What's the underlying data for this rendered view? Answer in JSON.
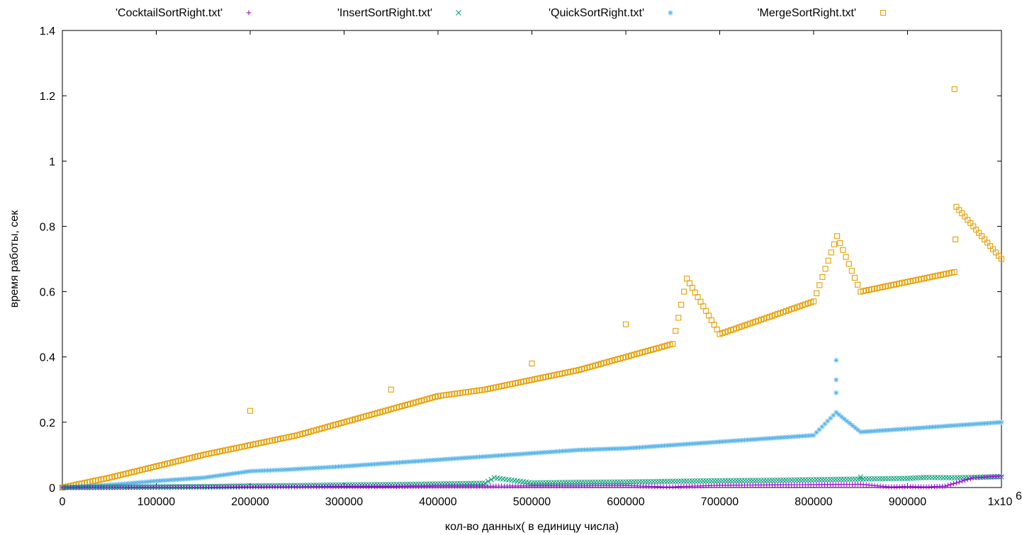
{
  "chart_data": {
    "type": "scatter",
    "title": "",
    "xlabel": "кол-во данных( в единицу числа)",
    "ylabel": "время работы, сек",
    "xlim": [
      0,
      1000000
    ],
    "ylim": [
      0,
      1.4
    ],
    "x_ticks": [
      0,
      100000,
      200000,
      300000,
      400000,
      500000,
      600000,
      700000,
      800000,
      900000,
      1000000
    ],
    "x_tick_labels": [
      "0",
      "100000",
      "200000",
      "300000",
      "400000",
      "500000",
      "600000",
      "700000",
      "800000",
      "900000",
      "1x10"
    ],
    "x_multiplier_exponent": "6",
    "y_ticks": [
      0,
      0.2,
      0.4,
      0.6,
      0.8,
      1,
      1.2,
      1.4
    ],
    "y_tick_labels": [
      "0",
      "0.2",
      "0.4",
      "0.6",
      "0.8",
      "1",
      "1.2",
      "1.4"
    ],
    "grid": false,
    "legend_position": "top",
    "series": [
      {
        "name": "'CocktailSortRight.txt'",
        "marker": "+",
        "color": "#9400d3",
        "points": [
          [
            0,
            0.0
          ],
          [
            50000,
            0.0
          ],
          [
            100000,
            0.001
          ],
          [
            150000,
            0.001
          ],
          [
            200000,
            0.002
          ],
          [
            250000,
            0.002
          ],
          [
            300000,
            0.003
          ],
          [
            350000,
            0.003
          ],
          [
            400000,
            0.004
          ],
          [
            450000,
            0.004
          ],
          [
            500000,
            0.005
          ],
          [
            550000,
            0.005
          ],
          [
            600000,
            0.006
          ],
          [
            640000,
            0.002
          ],
          [
            650000,
            0.002
          ],
          [
            700000,
            0.007
          ],
          [
            750000,
            0.008
          ],
          [
            800000,
            0.009
          ],
          [
            850000,
            0.01
          ],
          [
            880000,
            0.002
          ],
          [
            900000,
            0.003
          ],
          [
            920000,
            0.002
          ],
          [
            940000,
            0.004
          ],
          [
            970000,
            0.03
          ],
          [
            1000000,
            0.035
          ]
        ]
      },
      {
        "name": "'InsertSortRight.txt'",
        "marker": "x",
        "color": "#009e73",
        "points": [
          [
            0,
            0.0
          ],
          [
            50000,
            0.001
          ],
          [
            100000,
            0.002
          ],
          [
            150000,
            0.003
          ],
          [
            200000,
            0.005
          ],
          [
            250000,
            0.006
          ],
          [
            300000,
            0.008
          ],
          [
            350000,
            0.009
          ],
          [
            400000,
            0.011
          ],
          [
            450000,
            0.013
          ],
          [
            460000,
            0.03
          ],
          [
            500000,
            0.014
          ],
          [
            550000,
            0.016
          ],
          [
            600000,
            0.017
          ],
          [
            650000,
            0.019
          ],
          [
            700000,
            0.021
          ],
          [
            750000,
            0.022
          ],
          [
            800000,
            0.024
          ],
          [
            850000,
            0.026
          ],
          [
            850000,
            0.032
          ],
          [
            900000,
            0.028
          ],
          [
            920000,
            0.031
          ],
          [
            950000,
            0.03
          ],
          [
            1000000,
            0.033
          ]
        ]
      },
      {
        "name": "'QuickSortRight.txt'",
        "marker": "*",
        "color": "#56b4e9",
        "points": [
          [
            0,
            0.0
          ],
          [
            30000,
            0.005
          ],
          [
            60000,
            0.01
          ],
          [
            100000,
            0.02
          ],
          [
            150000,
            0.03
          ],
          [
            175000,
            0.04
          ],
          [
            200000,
            0.05
          ],
          [
            240000,
            0.055
          ],
          [
            300000,
            0.065
          ],
          [
            350000,
            0.075
          ],
          [
            400000,
            0.085
          ],
          [
            450000,
            0.095
          ],
          [
            500000,
            0.105
          ],
          [
            550000,
            0.115
          ],
          [
            600000,
            0.12
          ],
          [
            650000,
            0.13
          ],
          [
            700000,
            0.14
          ],
          [
            750000,
            0.15
          ],
          [
            800000,
            0.16
          ],
          [
            824000,
            0.39
          ],
          [
            824000,
            0.33
          ],
          [
            824000,
            0.29
          ],
          [
            824000,
            0.23
          ],
          [
            850000,
            0.17
          ],
          [
            900000,
            0.18
          ],
          [
            950000,
            0.19
          ],
          [
            1000000,
            0.2
          ]
        ]
      },
      {
        "name": "'MergeSortRight.txt'",
        "marker": "square",
        "color": "#e69f00",
        "points": [
          [
            0,
            0.0
          ],
          [
            50000,
            0.03
          ],
          [
            100000,
            0.065
          ],
          [
            150000,
            0.1
          ],
          [
            200000,
            0.13
          ],
          [
            200000,
            0.235
          ],
          [
            250000,
            0.16
          ],
          [
            300000,
            0.2
          ],
          [
            350000,
            0.24
          ],
          [
            350000,
            0.3
          ],
          [
            400000,
            0.28
          ],
          [
            450000,
            0.3
          ],
          [
            500000,
            0.33
          ],
          [
            500000,
            0.38
          ],
          [
            550000,
            0.36
          ],
          [
            600000,
            0.4
          ],
          [
            600000,
            0.5
          ],
          [
            650000,
            0.44
          ],
          [
            665000,
            0.64
          ],
          [
            700000,
            0.47
          ],
          [
            750000,
            0.52
          ],
          [
            800000,
            0.57
          ],
          [
            825000,
            0.77
          ],
          [
            850000,
            0.6
          ],
          [
            900000,
            0.63
          ],
          [
            950000,
            0.66
          ],
          [
            950000,
            1.22
          ],
          [
            952000,
            0.86
          ],
          [
            1000000,
            0.7
          ]
        ]
      }
    ]
  }
}
